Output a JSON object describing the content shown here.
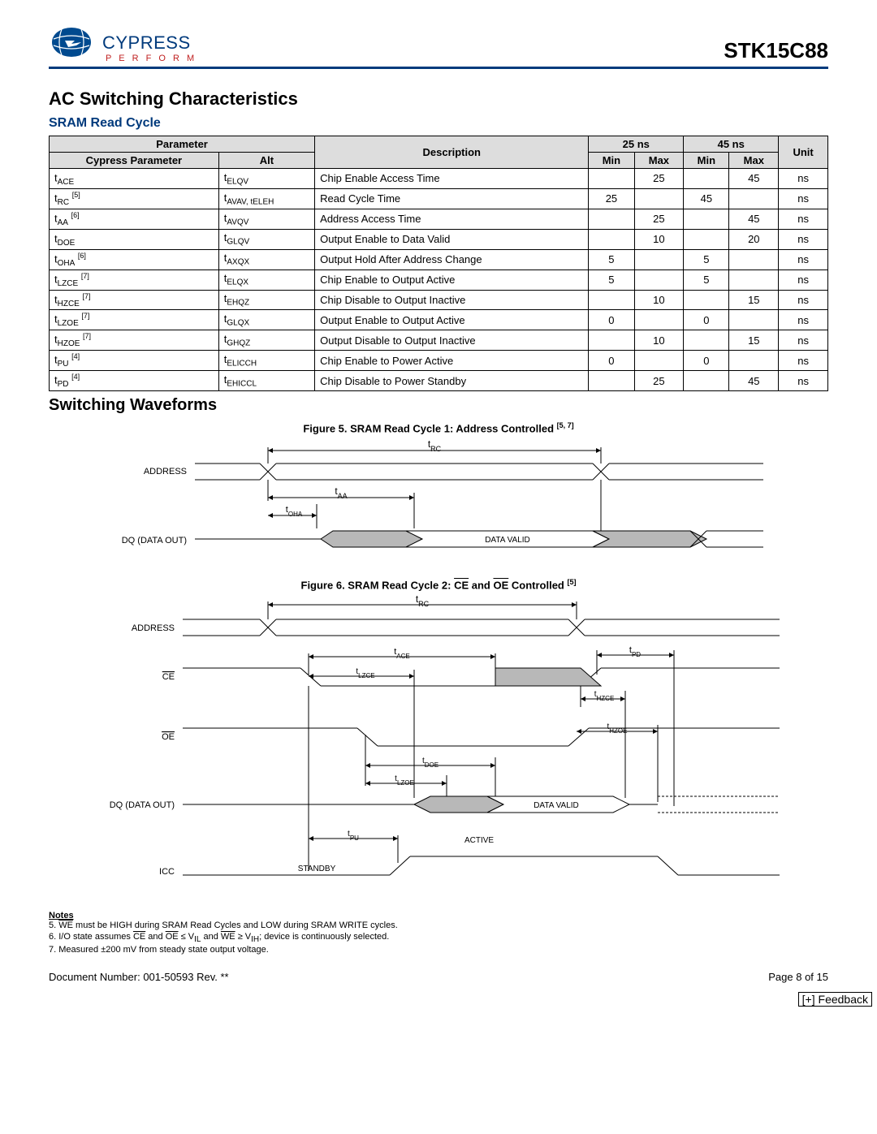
{
  "header": {
    "logo_main": "CYPRESS",
    "logo_sub": "P E R F O R M",
    "part_number": "STK15C88"
  },
  "sections": {
    "ac_title": "AC Switching Characteristics",
    "sram_read_title": "SRAM Read Cycle",
    "switching_title": "Switching Waveforms",
    "fig5_title": "Figure 5.  SRAM Read Cycle 1: Address Controlled ",
    "fig5_refs": "[5, 7]",
    "fig6_title_a": "Figure 6.  SRAM Read Cycle 2: ",
    "fig6_title_b": " and ",
    "fig6_title_c": " Controlled ",
    "fig6_refs": "[5]"
  },
  "table": {
    "hdr_param": "Parameter",
    "hdr_cypress": "Cypress Parameter",
    "hdr_alt": "Alt",
    "hdr_desc": "Description",
    "hdr_25": "25 ns",
    "hdr_45": "45 ns",
    "hdr_min": "Min",
    "hdr_max": "Max",
    "hdr_unit": "Unit",
    "rows": [
      {
        "cy": "ACE",
        "cyref": "",
        "alt": "ELQV",
        "desc": "Chip Enable Access Time",
        "min25": "",
        "max25": "25",
        "min45": "",
        "max45": "45",
        "unit": "ns"
      },
      {
        "cy": "RC",
        "cyref": "[5]",
        "alt": "AVAV, tELEH",
        "desc": "Read Cycle Time",
        "min25": "25",
        "max25": "",
        "min45": "45",
        "max45": "",
        "unit": "ns"
      },
      {
        "cy": "AA",
        "cyref": "[6]",
        "alt": "AVQV",
        "desc": "Address Access Time",
        "min25": "",
        "max25": "25",
        "min45": "",
        "max45": "45",
        "unit": "ns"
      },
      {
        "cy": "DOE",
        "cyref": "",
        "alt": "GLQV",
        "desc": "Output Enable to Data Valid",
        "min25": "",
        "max25": "10",
        "min45": "",
        "max45": "20",
        "unit": "ns"
      },
      {
        "cy": "OHA",
        "cyref": "[6]",
        "alt": "AXQX",
        "desc": "Output Hold After Address Change",
        "min25": "5",
        "max25": "",
        "min45": "5",
        "max45": "",
        "unit": "ns"
      },
      {
        "cy": "LZCE",
        "cyref": "[7]",
        "alt": "ELQX",
        "desc": "Chip Enable to Output Active",
        "min25": "5",
        "max25": "",
        "min45": "5",
        "max45": "",
        "unit": "ns"
      },
      {
        "cy": "HZCE",
        "cyref": "[7]",
        "alt": "EHQZ",
        "desc": "Chip Disable to Output Inactive",
        "min25": "",
        "max25": "10",
        "min45": "",
        "max45": "15",
        "unit": "ns"
      },
      {
        "cy": "LZOE",
        "cyref": "[7]",
        "alt": "GLQX",
        "desc": "Output Enable to Output Active",
        "min25": "0",
        "max25": "",
        "min45": "0",
        "max45": "",
        "unit": "ns"
      },
      {
        "cy": "HZOE",
        "cyref": "[7]",
        "alt": "GHQZ",
        "desc": "Output Disable to Output Inactive",
        "min25": "",
        "max25": "10",
        "min45": "",
        "max45": "15",
        "unit": "ns"
      },
      {
        "cy": "PU",
        "cyref": "[4]",
        "alt": "ELICCH",
        "desc": "Chip Enable to Power Active",
        "min25": "0",
        "max25": "",
        "min45": "0",
        "max45": "",
        "unit": "ns"
      },
      {
        "cy": "PD",
        "cyref": "[4]",
        "alt": "EHICCL",
        "desc": "Chip Disable to Power Standby",
        "min25": "",
        "max25": "25",
        "min45": "",
        "max45": "45",
        "unit": "ns"
      }
    ]
  },
  "waveform1": {
    "labels": {
      "address": "ADDRESS",
      "dq": "DQ (DATA OUT)",
      "data_valid": "DATA VALID",
      "trc": "tRC",
      "taa": "tAA",
      "toha": "tOHA"
    },
    "colors": {
      "fill": "#b8b8b8",
      "line": "#000"
    }
  },
  "waveform2": {
    "labels": {
      "address": "ADDRESS",
      "ce": "CE",
      "oe": "OE",
      "dq": "DQ (DATA OUT)",
      "icc": "ICC",
      "data_valid": "DATA VALID",
      "active": "ACTIVE",
      "standby": "STANDBY",
      "trc": "tRC",
      "tace": "tACE",
      "tlzce": "tLZCE",
      "thzce": "tHZCE",
      "tpd": "tPD",
      "tdoe": "tDOE",
      "tlzoe": "tLZOE",
      "thzoe": "tHZOE",
      "tpu": "tPU"
    }
  },
  "notes": {
    "title": "Notes",
    "n5_a": "5.  ",
    "n5_b": " must be HIGH during SRAM Read Cycles and LOW during SRAM WRITE cycles.",
    "n6_a": "6.  I/O state assumes ",
    "n6_b": " and ",
    "n6_c": " ≤ V",
    "n6_d": " and ",
    "n6_e": " ≥ V",
    "n6_f": "; device is continuously selected.",
    "n7": "7.  Measured ±200 mV from steady state output voltage."
  },
  "footer": {
    "docnum": "Document Number: 001-50593 Rev. **",
    "page": "Page 8 of 15",
    "feedback": "[+] Feedback"
  }
}
